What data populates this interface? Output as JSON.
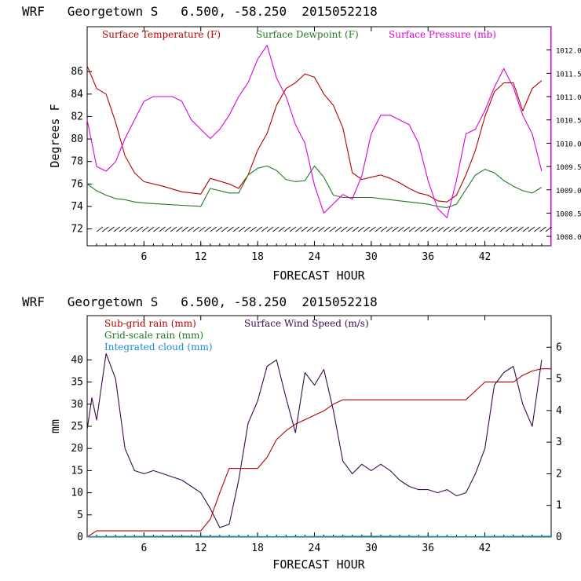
{
  "chart_data": [
    {
      "type": "line",
      "title": "WRF   Georgetown S   6.500, -58.250  2015052218",
      "xlabel": "FORECAST HOUR",
      "ylabel": "Degrees F",
      "xlim": [
        0,
        49
      ],
      "ylim": [
        70.5,
        90
      ],
      "y2lim": [
        1007.8,
        1012.5
      ],
      "x_ticks": [
        "6",
        "12",
        "18",
        "24",
        "30",
        "36",
        "42"
      ],
      "y_ticks": [
        "72",
        "74",
        "76",
        "78",
        "80",
        "82",
        "84",
        "86"
      ],
      "y2_ticks": [
        "1008.0",
        "1008.5",
        "1009.0",
        "1009.5",
        "1010.0",
        "1010.5",
        "1011.0",
        "1011.5",
        "1012.0"
      ],
      "legend_position": "top",
      "series": [
        {
          "name": "Surface Temperature (F)",
          "color": "#b40000",
          "axis": "left",
          "x": [
            0,
            1,
            2,
            3,
            4,
            5,
            6,
            8,
            10,
            12,
            13,
            15,
            16,
            17,
            18,
            19,
            20,
            21,
            22,
            23,
            24,
            25,
            26,
            27,
            28,
            29,
            30,
            31,
            32,
            33,
            34,
            35,
            36,
            37,
            38,
            39,
            40,
            41,
            42,
            43,
            44,
            45,
            46,
            47,
            48
          ],
          "y": [
            86.5,
            84.5,
            84,
            81.5,
            78.5,
            77,
            76.2,
            75.8,
            75.3,
            75.1,
            76.5,
            76,
            75.6,
            76.8,
            79,
            80.5,
            83,
            84.5,
            85,
            85.8,
            85.5,
            84,
            83,
            81,
            77,
            76.4,
            76.6,
            76.8,
            76.5,
            76.1,
            75.6,
            75.2,
            75,
            74.5,
            74.4,
            75,
            76.8,
            79,
            82,
            84.2,
            85,
            85,
            82.5,
            84.5,
            85.2
          ]
        },
        {
          "name": "Surface Dewpoint (F)",
          "color": "#1f7a1f",
          "axis": "left",
          "x": [
            0,
            1,
            2,
            3,
            4,
            5,
            6,
            8,
            10,
            12,
            13,
            15,
            16,
            17,
            18,
            19,
            20,
            21,
            22,
            23,
            24,
            25,
            26,
            27,
            28,
            29,
            30,
            31,
            32,
            33,
            34,
            35,
            36,
            37,
            38,
            39,
            40,
            41,
            42,
            43,
            44,
            45,
            46,
            47,
            48
          ],
          "y": [
            76,
            75.4,
            75,
            74.7,
            74.6,
            74.4,
            74.3,
            74.2,
            74.1,
            74,
            75.6,
            75.2,
            75.2,
            76.8,
            77.4,
            77.6,
            77.2,
            76.4,
            76.2,
            76.3,
            77.6,
            76.6,
            75,
            74.8,
            74.8,
            74.8,
            74.8,
            74.7,
            74.6,
            74.5,
            74.4,
            74.3,
            74.2,
            74,
            73.9,
            74.2,
            75.5,
            76.8,
            77.3,
            77,
            76.3,
            75.8,
            75.4,
            75.2,
            75.7
          ]
        },
        {
          "name": "Surface Pressure (mb)",
          "color": "#dd00dd",
          "axis": "right",
          "x": [
            0,
            1,
            2,
            3,
            4,
            5,
            6,
            7,
            8,
            9,
            10,
            11,
            12,
            13,
            14,
            15,
            16,
            17,
            18,
            19,
            20,
            21,
            22,
            23,
            24,
            25,
            26,
            27,
            28,
            29,
            30,
            31,
            32,
            33,
            34,
            35,
            36,
            37,
            38,
            39,
            40,
            41,
            42,
            43,
            44,
            45,
            46,
            47,
            48
          ],
          "y": [
            1010.5,
            1009.5,
            1009.4,
            1009.6,
            1010.1,
            1010.5,
            1010.9,
            1011.0,
            1011.0,
            1011.0,
            1010.9,
            1010.5,
            1010.3,
            1010.1,
            1010.3,
            1010.6,
            1011.0,
            1011.3,
            1011.8,
            1012.1,
            1011.4,
            1011.0,
            1010.4,
            1010.0,
            1009.1,
            1008.5,
            1008.7,
            1008.9,
            1008.8,
            1009.3,
            1010.2,
            1010.6,
            1010.6,
            1010.5,
            1010.4,
            1010.0,
            1009.2,
            1008.6,
            1008.4,
            1009.2,
            1010.2,
            1010.3,
            1010.7,
            1011.2,
            1011.6,
            1011.2,
            1010.6,
            1010.2,
            1009.4
          ]
        }
      ]
    },
    {
      "type": "line",
      "title": "WRF   Georgetown S   6.500, -58.250  2015052218",
      "xlabel": "FORECAST HOUR",
      "ylabel": "mm",
      "xlim": [
        0,
        49
      ],
      "ylim": [
        0,
        50
      ],
      "y2lim": [
        0,
        7
      ],
      "x_ticks": [
        "6",
        "12",
        "18",
        "24",
        "30",
        "36",
        "42"
      ],
      "y_ticks": [
        "0",
        "5",
        "10",
        "15",
        "20",
        "25",
        "30",
        "35",
        "40"
      ],
      "y2_ticks": [
        "0",
        "1",
        "2",
        "3",
        "4",
        "5",
        "6"
      ],
      "legend_position": "top",
      "series": [
        {
          "name": "Sub-grid rain (mm)",
          "color": "#b40000",
          "axis": "left",
          "x": [
            0,
            1,
            12,
            13,
            14,
            15,
            18,
            19,
            20,
            21,
            22,
            24,
            25,
            26,
            27,
            28,
            30,
            36,
            39,
            40,
            41,
            42,
            45,
            46,
            47,
            48,
            49
          ],
          "y": [
            0,
            1.4,
            1.4,
            4,
            10,
            15.5,
            15.5,
            18,
            22,
            24,
            25.5,
            27.5,
            28.5,
            30,
            31,
            31,
            31,
            31,
            31,
            31,
            33,
            35,
            35,
            36.5,
            37.5,
            38,
            38
          ]
        },
        {
          "name": "Grid-scale rain (mm)",
          "color": "#1f7a1f",
          "axis": "left",
          "x": [
            0,
            49
          ],
          "y": [
            0,
            0
          ]
        },
        {
          "name": "Integrated cloud (mm)",
          "color": "#1a8cd8",
          "axis": "left",
          "x": [
            0,
            10,
            20,
            30,
            40,
            49
          ],
          "y": [
            0.1,
            0.2,
            0.1,
            0.2,
            0.1,
            0.2
          ]
        },
        {
          "name": "Surface Wind Speed (m/s)",
          "color": "#3a0a4a",
          "axis": "right",
          "x": [
            0,
            0.5,
            1,
            2,
            3,
            4,
            5,
            6,
            7,
            8,
            9,
            10,
            11,
            12,
            13,
            14,
            15,
            16,
            17,
            18,
            19,
            20,
            21,
            22,
            23,
            24,
            25,
            26,
            27,
            28,
            29,
            30,
            31,
            32,
            33,
            34,
            35,
            36,
            37,
            38,
            39,
            40,
            41,
            42,
            43,
            44,
            45,
            46,
            47,
            48
          ],
          "y": [
            3.4,
            4.4,
            3.7,
            5.8,
            5.0,
            2.8,
            2.1,
            2.0,
            2.1,
            2.0,
            1.9,
            1.8,
            1.6,
            1.4,
            0.9,
            0.3,
            0.4,
            1.8,
            3.6,
            4.3,
            5.4,
            5.6,
            4.4,
            3.3,
            5.2,
            4.8,
            5.3,
            4.0,
            2.4,
            2.0,
            2.3,
            2.1,
            2.3,
            2.1,
            1.8,
            1.6,
            1.5,
            1.5,
            1.4,
            1.5,
            1.3,
            1.4,
            2.0,
            2.8,
            4.8,
            5.2,
            5.4,
            4.2,
            3.5,
            5.6
          ]
        }
      ]
    }
  ]
}
